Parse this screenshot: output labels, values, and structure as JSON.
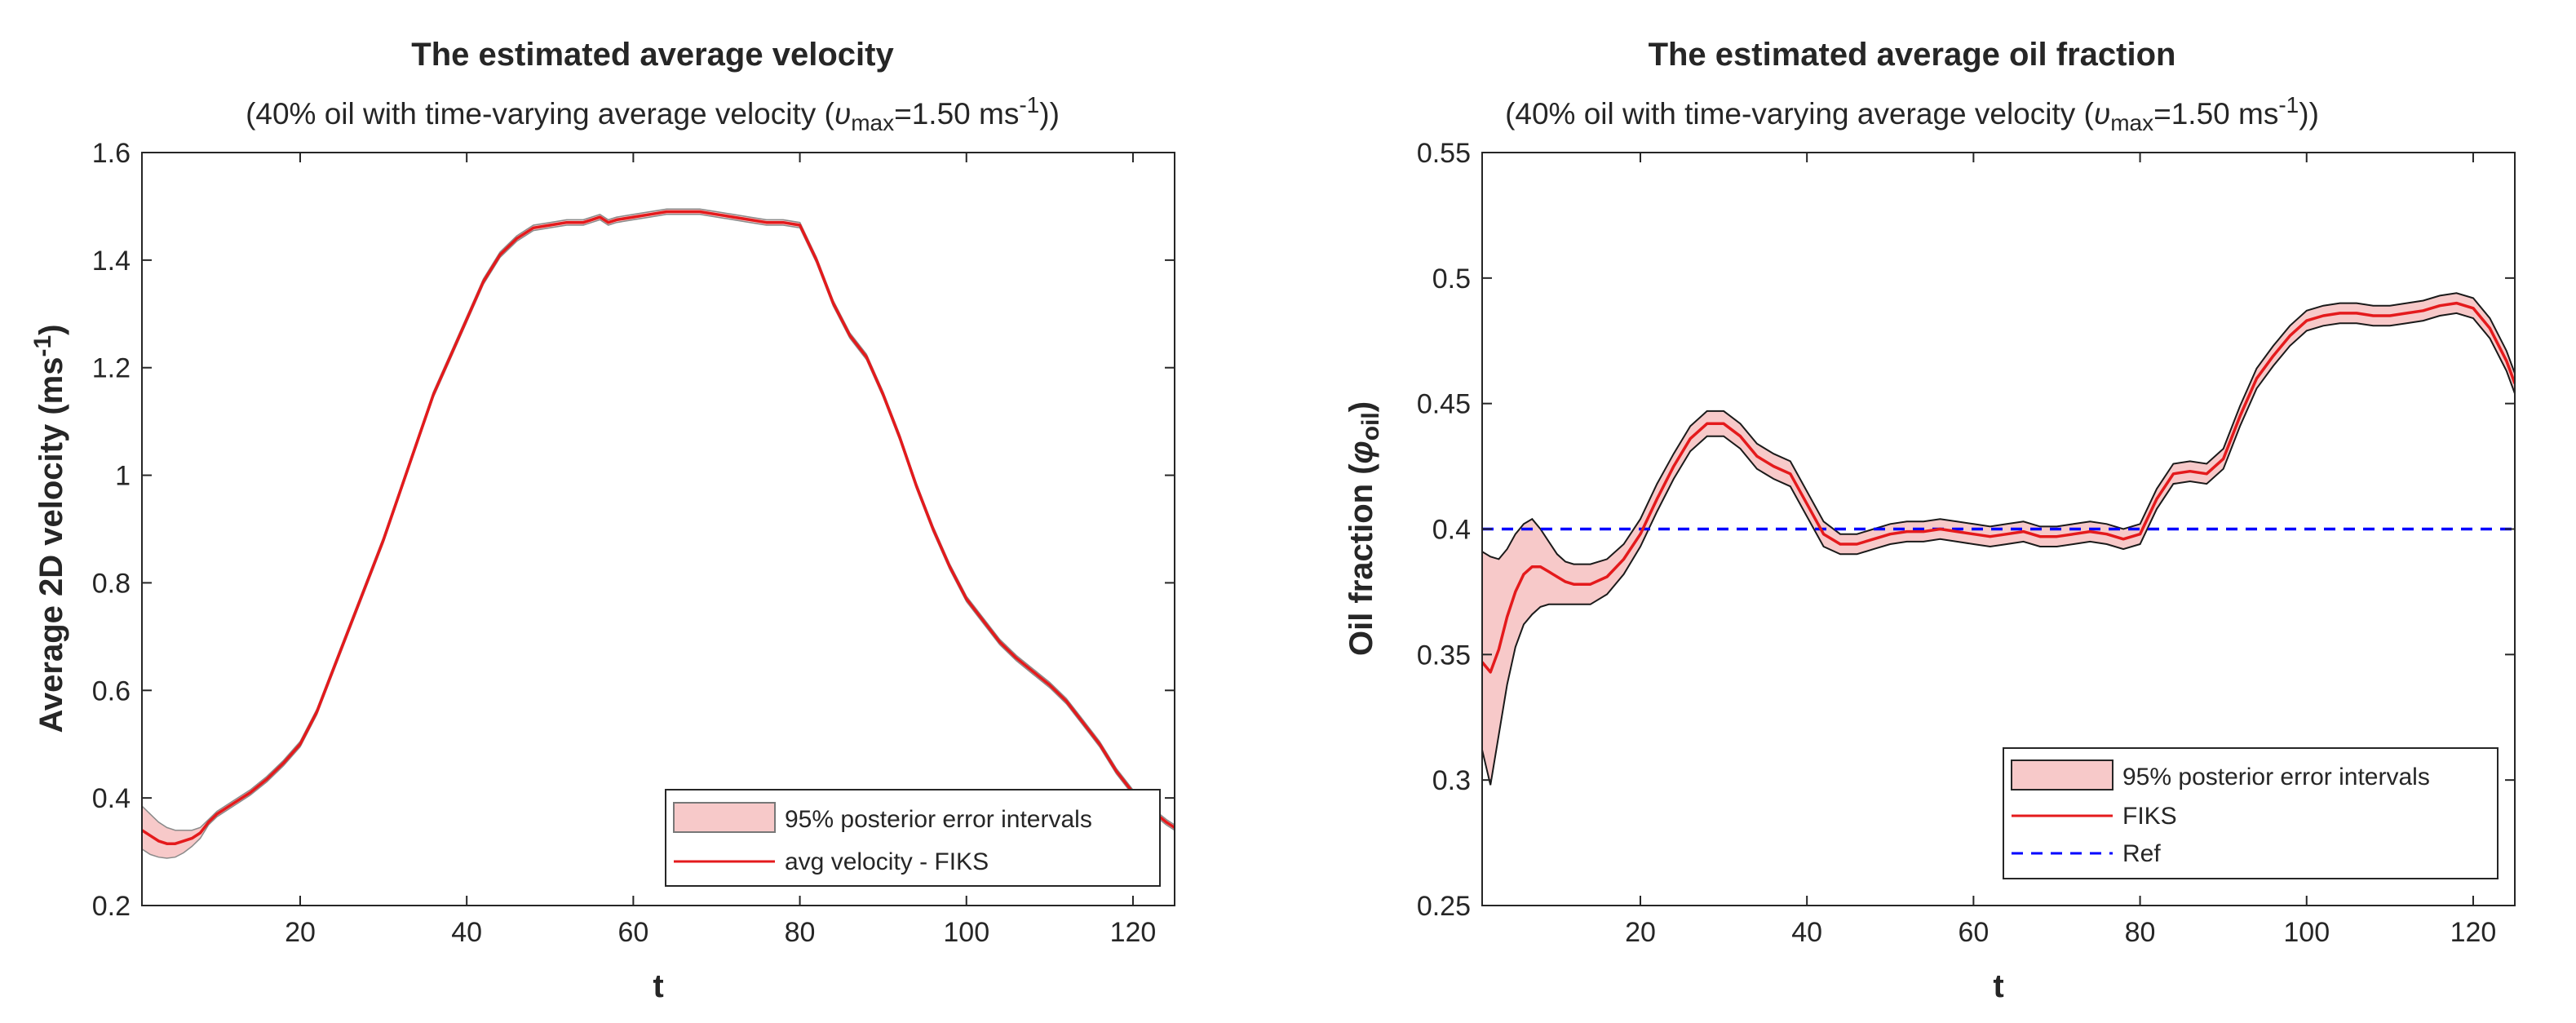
{
  "chart_data": [
    {
      "type": "area",
      "title": "The estimated average velocity",
      "subtitle_parts": {
        "prefix": "(40% oil with time-varying average velocity (",
        "var": "υ",
        "var_sub": "max",
        "middle": "=1.50 ms",
        "exp": "-1",
        "suffix": "))"
      },
      "xlabel": "t",
      "ylabel_parts": {
        "main": "Average 2D velocity (ms",
        "exp": "-1",
        "end": ")"
      },
      "xlim": [
        1,
        125
      ],
      "ylim": [
        0.2,
        1.6
      ],
      "xticks": [
        20,
        40,
        60,
        80,
        100,
        120
      ],
      "yticks": [
        0.2,
        0.4,
        0.6,
        0.8,
        1,
        1.2,
        1.4,
        1.6
      ],
      "ytick_labels": [
        "0.2",
        "0.4",
        "0.6",
        "0.8",
        "1",
        "1.2",
        "1.4",
        "1.6"
      ],
      "legend_position": "bottom-right",
      "legend": [
        "95% posterior error intervals",
        "avg velocity - FIKS"
      ],
      "series": [
        {
          "name": "avg velocity - FIKS",
          "color": "#e41a1c",
          "x": [
            1,
            2,
            3,
            4,
            5,
            6,
            7,
            8,
            9,
            10,
            12,
            14,
            16,
            18,
            20,
            22,
            24,
            26,
            28,
            30,
            32,
            34,
            36,
            38,
            40,
            42,
            44,
            46,
            48,
            50,
            52,
            54,
            55,
            56,
            57,
            58,
            60,
            62,
            64,
            66,
            68,
            70,
            72,
            74,
            76,
            78,
            80,
            82,
            84,
            86,
            88,
            90,
            92,
            94,
            96,
            98,
            100,
            102,
            104,
            106,
            108,
            110,
            112,
            114,
            116,
            118,
            120,
            122,
            124,
            125
          ],
          "values": [
            0.34,
            0.33,
            0.32,
            0.315,
            0.315,
            0.32,
            0.325,
            0.335,
            0.355,
            0.37,
            0.39,
            0.41,
            0.435,
            0.465,
            0.5,
            0.56,
            0.64,
            0.72,
            0.8,
            0.88,
            0.97,
            1.06,
            1.15,
            1.22,
            1.29,
            1.36,
            1.41,
            1.44,
            1.46,
            1.465,
            1.47,
            1.47,
            1.475,
            1.48,
            1.47,
            1.475,
            1.48,
            1.485,
            1.49,
            1.49,
            1.49,
            1.485,
            1.48,
            1.475,
            1.47,
            1.47,
            1.465,
            1.4,
            1.32,
            1.26,
            1.22,
            1.15,
            1.07,
            0.98,
            0.9,
            0.83,
            0.77,
            0.73,
            0.69,
            0.66,
            0.635,
            0.61,
            0.58,
            0.54,
            0.5,
            0.45,
            0.41,
            0.38,
            0.355,
            0.345
          ]
        },
        {
          "name": "95% posterior error intervals",
          "color": "#f7c9c9",
          "x": [
            1,
            2,
            3,
            4,
            5,
            6,
            7,
            8,
            9,
            10,
            12,
            14,
            16,
            18,
            20,
            22,
            24,
            26,
            28,
            30,
            32,
            34,
            36,
            38,
            40,
            42,
            44,
            46,
            48,
            50,
            52,
            54,
            55,
            56,
            57,
            58,
            60,
            62,
            64,
            66,
            68,
            70,
            72,
            74,
            76,
            78,
            80,
            82,
            84,
            86,
            88,
            90,
            92,
            94,
            96,
            98,
            100,
            102,
            104,
            106,
            108,
            110,
            112,
            114,
            116,
            118,
            120,
            122,
            124,
            125
          ],
          "upper": [
            0.385,
            0.37,
            0.355,
            0.345,
            0.34,
            0.34,
            0.34,
            0.345,
            0.36,
            0.375,
            0.395,
            0.415,
            0.44,
            0.47,
            0.505,
            0.565,
            0.645,
            0.725,
            0.805,
            0.885,
            0.975,
            1.065,
            1.155,
            1.225,
            1.295,
            1.365,
            1.415,
            1.445,
            1.465,
            1.47,
            1.475,
            1.475,
            1.48,
            1.485,
            1.475,
            1.48,
            1.485,
            1.49,
            1.495,
            1.495,
            1.495,
            1.49,
            1.485,
            1.48,
            1.475,
            1.475,
            1.47,
            1.405,
            1.325,
            1.265,
            1.225,
            1.155,
            1.075,
            0.985,
            0.905,
            0.835,
            0.775,
            0.735,
            0.695,
            0.665,
            0.64,
            0.615,
            0.585,
            0.545,
            0.505,
            0.455,
            0.415,
            0.385,
            0.36,
            0.35
          ],
          "lower": [
            0.305,
            0.295,
            0.29,
            0.288,
            0.29,
            0.298,
            0.31,
            0.325,
            0.35,
            0.365,
            0.385,
            0.405,
            0.43,
            0.46,
            0.495,
            0.555,
            0.635,
            0.715,
            0.795,
            0.875,
            0.965,
            1.055,
            1.145,
            1.215,
            1.285,
            1.355,
            1.405,
            1.435,
            1.455,
            1.46,
            1.465,
            1.465,
            1.47,
            1.475,
            1.465,
            1.47,
            1.475,
            1.48,
            1.485,
            1.485,
            1.485,
            1.48,
            1.475,
            1.47,
            1.465,
            1.465,
            1.46,
            1.395,
            1.315,
            1.255,
            1.215,
            1.145,
            1.065,
            0.975,
            0.895,
            0.825,
            0.765,
            0.725,
            0.685,
            0.655,
            0.63,
            0.605,
            0.575,
            0.535,
            0.495,
            0.445,
            0.405,
            0.375,
            0.35,
            0.34
          ]
        }
      ]
    },
    {
      "type": "area",
      "title": "The estimated average oil fraction",
      "subtitle_parts": {
        "prefix": "(40% oil with time-varying average velocity (",
        "var": "υ",
        "var_sub": "max",
        "middle": "=1.50 ms",
        "exp": "-1",
        "suffix": "))"
      },
      "xlabel": "t",
      "ylabel_parts": {
        "main": "Oil fraction (",
        "var": "φ",
        "var_sub": "oil",
        "end": ")"
      },
      "xlim": [
        1,
        125
      ],
      "ylim": [
        0.25,
        0.55
      ],
      "xticks": [
        20,
        40,
        60,
        80,
        100,
        120
      ],
      "yticks": [
        0.25,
        0.3,
        0.35,
        0.4,
        0.45,
        0.5,
        0.55
      ],
      "ytick_labels": [
        "0.25",
        "0.3",
        "0.35",
        "0.4",
        "0.45",
        "0.5",
        "0.55"
      ],
      "legend_position": "bottom-right",
      "legend": [
        "95% posterior error intervals",
        "FIKS",
        "Ref"
      ],
      "reference_value": 0.4,
      "series": [
        {
          "name": "FIKS",
          "color": "#e41a1c",
          "x": [
            1,
            2,
            3,
            4,
            5,
            6,
            7,
            8,
            9,
            10,
            11,
            12,
            13,
            14,
            16,
            18,
            20,
            22,
            24,
            26,
            28,
            30,
            32,
            34,
            36,
            38,
            40,
            42,
            44,
            46,
            48,
            50,
            52,
            54,
            56,
            58,
            60,
            62,
            64,
            66,
            68,
            70,
            72,
            74,
            76,
            78,
            80,
            82,
            84,
            86,
            88,
            90,
            92,
            94,
            96,
            98,
            100,
            102,
            104,
            106,
            108,
            110,
            112,
            114,
            116,
            118,
            120,
            122,
            124,
            125
          ],
          "values": [
            0.347,
            0.343,
            0.352,
            0.365,
            0.375,
            0.382,
            0.385,
            0.385,
            0.383,
            0.381,
            0.379,
            0.378,
            0.378,
            0.378,
            0.381,
            0.388,
            0.398,
            0.412,
            0.425,
            0.436,
            0.442,
            0.442,
            0.437,
            0.429,
            0.425,
            0.422,
            0.41,
            0.398,
            0.394,
            0.394,
            0.396,
            0.398,
            0.399,
            0.399,
            0.4,
            0.399,
            0.398,
            0.397,
            0.398,
            0.399,
            0.397,
            0.397,
            0.398,
            0.399,
            0.398,
            0.396,
            0.398,
            0.412,
            0.422,
            0.423,
            0.422,
            0.428,
            0.445,
            0.46,
            0.469,
            0.477,
            0.483,
            0.485,
            0.486,
            0.486,
            0.485,
            0.485,
            0.486,
            0.487,
            0.489,
            0.49,
            0.488,
            0.48,
            0.467,
            0.458
          ]
        },
        {
          "name": "95% posterior error intervals",
          "color": "#f7c9c9",
          "x": [
            1,
            2,
            3,
            4,
            5,
            6,
            7,
            8,
            9,
            10,
            11,
            12,
            13,
            14,
            16,
            18,
            20,
            22,
            24,
            26,
            28,
            30,
            32,
            34,
            36,
            38,
            40,
            42,
            44,
            46,
            48,
            50,
            52,
            54,
            56,
            58,
            60,
            62,
            64,
            66,
            68,
            70,
            72,
            74,
            76,
            78,
            80,
            82,
            84,
            86,
            88,
            90,
            92,
            94,
            96,
            98,
            100,
            102,
            104,
            106,
            108,
            110,
            112,
            114,
            116,
            118,
            120,
            122,
            124,
            125
          ],
          "upper": [
            0.391,
            0.389,
            0.388,
            0.392,
            0.398,
            0.402,
            0.404,
            0.4,
            0.395,
            0.39,
            0.387,
            0.386,
            0.386,
            0.386,
            0.388,
            0.394,
            0.404,
            0.418,
            0.43,
            0.441,
            0.447,
            0.447,
            0.442,
            0.434,
            0.43,
            0.427,
            0.415,
            0.403,
            0.398,
            0.398,
            0.4,
            0.402,
            0.403,
            0.403,
            0.404,
            0.403,
            0.402,
            0.401,
            0.402,
            0.403,
            0.401,
            0.401,
            0.402,
            0.403,
            0.402,
            0.4,
            0.402,
            0.416,
            0.426,
            0.427,
            0.426,
            0.432,
            0.449,
            0.464,
            0.473,
            0.481,
            0.487,
            0.489,
            0.49,
            0.49,
            0.489,
            0.489,
            0.49,
            0.491,
            0.493,
            0.494,
            0.492,
            0.484,
            0.471,
            0.462
          ],
          "lower": [
            0.312,
            0.298,
            0.318,
            0.338,
            0.353,
            0.362,
            0.366,
            0.369,
            0.37,
            0.37,
            0.37,
            0.37,
            0.37,
            0.37,
            0.374,
            0.382,
            0.393,
            0.407,
            0.42,
            0.431,
            0.437,
            0.437,
            0.432,
            0.424,
            0.42,
            0.417,
            0.405,
            0.393,
            0.39,
            0.39,
            0.392,
            0.394,
            0.395,
            0.395,
            0.396,
            0.395,
            0.394,
            0.393,
            0.394,
            0.395,
            0.393,
            0.393,
            0.394,
            0.395,
            0.394,
            0.392,
            0.394,
            0.408,
            0.418,
            0.419,
            0.418,
            0.424,
            0.441,
            0.456,
            0.465,
            0.473,
            0.479,
            0.481,
            0.482,
            0.482,
            0.481,
            0.481,
            0.482,
            0.483,
            0.485,
            0.486,
            0.484,
            0.476,
            0.463,
            0.454
          ]
        },
        {
          "name": "Ref",
          "color": "#0000ff",
          "x": [
            1,
            125
          ],
          "values": [
            0.4,
            0.4
          ]
        }
      ]
    }
  ]
}
